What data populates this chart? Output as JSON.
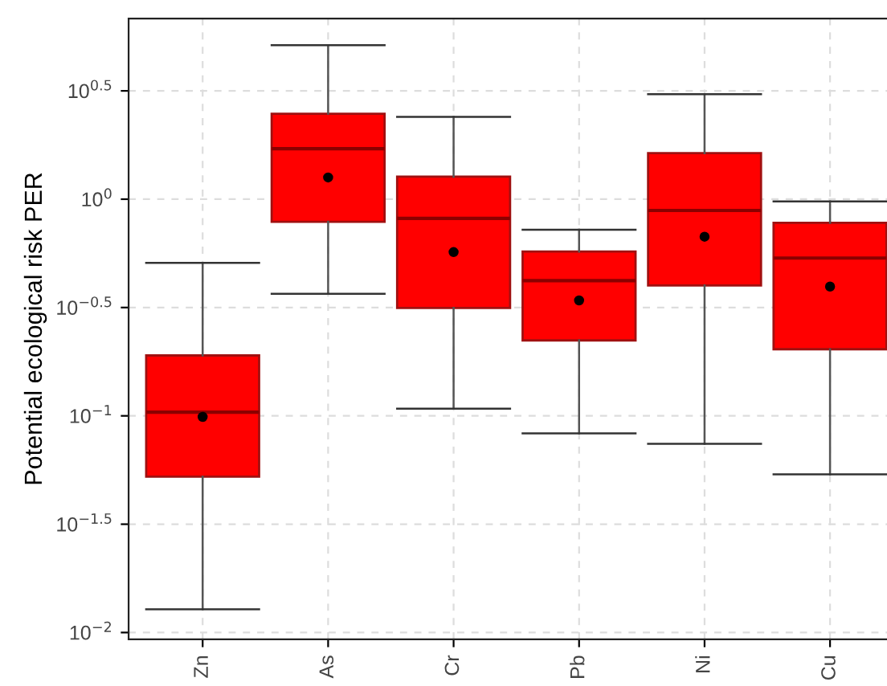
{
  "chart_data": {
    "type": "box",
    "ylabel": "Potential ecological risk PER",
    "categories": [
      "Zn",
      "As",
      "Cr",
      "Pb",
      "Ni",
      "Cu"
    ],
    "boxes": [
      {
        "low": 0.0128,
        "q1": 0.0524,
        "median": 0.104,
        "q3": 0.19,
        "high": 0.508,
        "mean": 0.0989
      },
      {
        "low": 0.366,
        "q1": 0.787,
        "median": 1.71,
        "q3": 2.48,
        "high": 5.14,
        "mean": 1.26
      },
      {
        "low": 0.108,
        "q1": 0.315,
        "median": 0.815,
        "q3": 1.27,
        "high": 2.4,
        "mean": 0.57
      },
      {
        "low": 0.083,
        "q1": 0.223,
        "median": 0.421,
        "q3": 0.573,
        "high": 0.723,
        "mean": 0.341
      },
      {
        "low": 0.0743,
        "q1": 0.4,
        "median": 0.887,
        "q3": 1.63,
        "high": 3.05,
        "mean": 0.671
      },
      {
        "low": 0.0537,
        "q1": 0.203,
        "median": 0.535,
        "q3": 0.778,
        "high": 0.977,
        "mean": 0.395
      }
    ],
    "color": "#ff0000",
    "log": true,
    "grid": true,
    "ylim": [
      0.0093,
      6.82
    ],
    "yticks": [
      {
        "value": 0.01,
        "label": "10$^{−2}$"
      },
      {
        "value": 0.03162,
        "label": "10$^{−1.5}$"
      },
      {
        "value": 0.1,
        "label": "10$^{−1}$"
      },
      {
        "value": 0.3162,
        "label": "10$^{−0.5}$"
      },
      {
        "value": 1,
        "label": "10$^{0}$"
      },
      {
        "value": 3.162,
        "label": "10$^{0.5}$"
      }
    ]
  }
}
